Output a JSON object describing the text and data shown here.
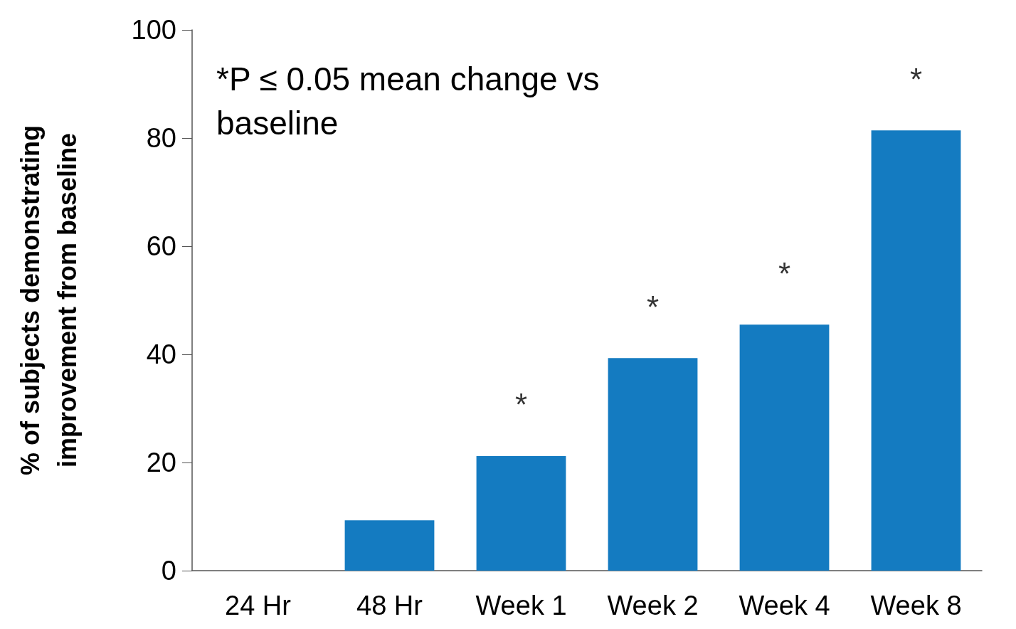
{
  "chart_data": {
    "type": "bar",
    "ylabel": "% of subjects demonstrating\nimprovement from baseline",
    "categories": [
      "24 Hr",
      "48 Hr",
      "Week 1",
      "Week 2",
      "Week 4",
      "Week 8"
    ],
    "values": [
      0,
      9.3,
      21.2,
      39.3,
      45.5,
      81.4
    ],
    "color": "#147bc1",
    "ylim": [
      0,
      100
    ],
    "yticks": [
      0,
      20,
      40,
      60,
      80,
      100
    ],
    "grid": false,
    "annotations": [
      "*P ≤ 0.05 mean change vs baseline",
      {
        "text": "*",
        "x": "Week 1",
        "y": 21.2
      },
      {
        "text": "*",
        "x": "Week 2",
        "y": 39.3
      },
      {
        "text": "*",
        "x": "Week 4",
        "y": 45.5
      },
      {
        "text": "*",
        "x": "Week 8",
        "y": 81.4
      }
    ]
  }
}
